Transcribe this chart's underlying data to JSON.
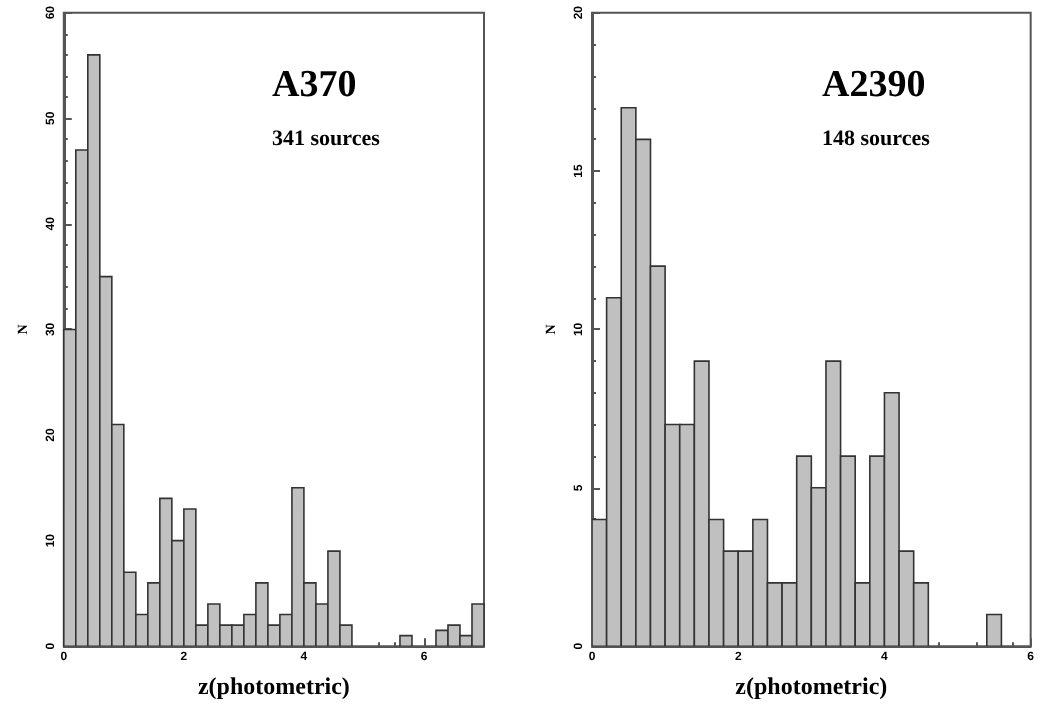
{
  "chart_data": [
    {
      "type": "histogram",
      "title": "A370",
      "subtitle": "341 sources",
      "xlabel": "z(photometric)",
      "ylabel": "N",
      "color": "#c0c0c0",
      "bins": [
        0,
        0.2,
        0.4,
        0.6,
        0.8,
        1.0,
        1.2,
        1.4,
        1.6,
        1.8,
        2.0,
        2.2,
        2.4,
        2.6,
        2.8,
        3.0,
        3.2,
        3.4,
        3.6,
        3.8,
        4.0,
        4.2,
        4.4,
        4.6,
        4.8,
        5.0,
        5.2,
        5.4,
        5.6,
        5.8,
        6.0,
        6.2,
        6.4,
        6.6,
        6.8,
        7.0
      ],
      "values": [
        30,
        47,
        56,
        35,
        21,
        7,
        3,
        6,
        14,
        10,
        13,
        2,
        4,
        2,
        2,
        3,
        6,
        2,
        3,
        15,
        6,
        4,
        9,
        2,
        0,
        0,
        0,
        0,
        1,
        0,
        0,
        1.5,
        2,
        1,
        4
      ],
      "xlim": [
        0,
        7
      ],
      "xticks": [
        0,
        2,
        4,
        6
      ],
      "ylim": [
        0,
        60
      ],
      "yticks": [
        0,
        10,
        20,
        30,
        40,
        50,
        60
      ],
      "grid": false
    },
    {
      "type": "histogram",
      "title": "A2390",
      "subtitle": "148 sources",
      "xlabel": "z(photometric)",
      "ylabel": "N",
      "color": "#c0c0c0",
      "bins": [
        0,
        0.2,
        0.4,
        0.6,
        0.8,
        1.0,
        1.2,
        1.4,
        1.6,
        1.8,
        2.0,
        2.2,
        2.4,
        2.6,
        2.8,
        3.0,
        3.2,
        3.4,
        3.6,
        3.8,
        4.0,
        4.2,
        4.4,
        4.6,
        4.8,
        5.0,
        5.2,
        5.4,
        5.6,
        5.8,
        6.0
      ],
      "values": [
        4,
        11,
        17,
        16,
        12,
        7,
        7,
        9,
        4,
        3,
        3,
        4,
        2,
        2,
        6,
        5,
        9,
        6,
        2,
        6,
        8,
        3,
        2,
        0,
        0,
        0,
        0,
        1,
        0,
        0
      ],
      "xlim": [
        0,
        6
      ],
      "xticks": [
        0,
        2,
        4,
        6
      ],
      "ylim": [
        0,
        20
      ],
      "yticks": [
        0,
        5,
        10,
        15,
        20
      ],
      "grid": false
    }
  ]
}
